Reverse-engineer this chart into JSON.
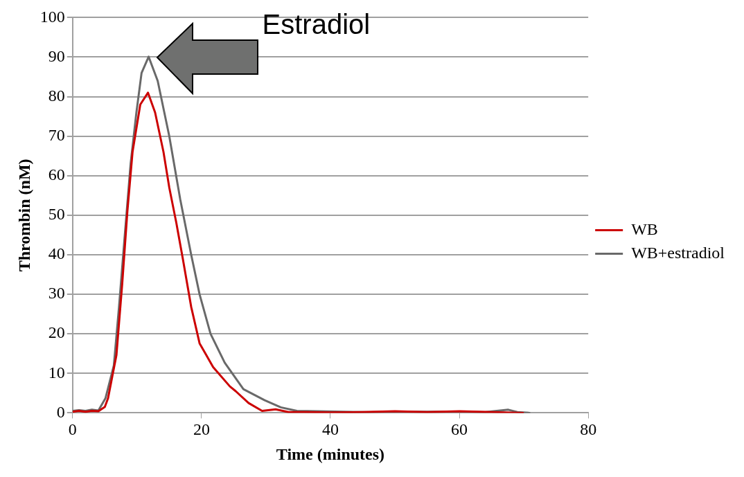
{
  "chart_data": {
    "type": "line",
    "xlabel": "Time (minutes)",
    "ylabel": "Thrombin (nM)",
    "xlim": [
      0,
      80
    ],
    "xticks": [
      0,
      20,
      40,
      60,
      80
    ],
    "ylim": [
      0,
      100
    ],
    "yticks": [
      0,
      10,
      20,
      30,
      40,
      50,
      60,
      70,
      80,
      90,
      100
    ],
    "grid": "y",
    "legend": "right",
    "annotations": [
      "Estradiol"
    ],
    "series": [
      {
        "name": "WB",
        "color": "#cc0000",
        "x": [
          0,
          1,
          2,
          3,
          4,
          5,
          5.5,
          6.8,
          7.7,
          8.5,
          9.3,
          10.5,
          11.7,
          12.8,
          14.1,
          15,
          16.1,
          17.1,
          18.4,
          19.7,
          21.8,
          24.4,
          25.3,
          27.3,
          29.4,
          31.5,
          33.5,
          36,
          40,
          45,
          50,
          55,
          60,
          65,
          70
        ],
        "values": [
          0.3,
          0.5,
          0.3,
          0.5,
          0.4,
          1.5,
          3.7,
          14.6,
          32.7,
          51,
          66,
          78,
          81,
          76,
          66,
          57,
          48,
          39,
          26.8,
          17.6,
          11.6,
          6.7,
          5.5,
          2.5,
          0.5,
          0.9,
          0.2,
          0.2,
          0.1,
          0.2,
          0.4,
          0.2,
          0.4,
          0.2,
          0
        ]
      },
      {
        "name": "WB+estradiol",
        "color": "#696969",
        "x": [
          0,
          1,
          2,
          3,
          4,
          5.1,
          6.4,
          7.2,
          8.1,
          9,
          9.9,
          10.7,
          11.8,
          13.2,
          15,
          16.7,
          18.4,
          19.7,
          21.4,
          23.6,
          26.5,
          29.8,
          32.3,
          34.8,
          38,
          42,
          46,
          50,
          55,
          60,
          64,
          67.6,
          69,
          71
        ],
        "values": [
          0.5,
          0.7,
          0.5,
          0.8,
          0.6,
          3.7,
          12,
          26.8,
          45,
          63,
          76,
          86,
          90.1,
          84,
          70,
          54,
          40,
          30,
          20,
          12.7,
          6,
          3.2,
          1.4,
          0.5,
          0.4,
          0.3,
          0.2,
          0.3,
          0.3,
          0.3,
          0.2,
          0.8,
          0.2,
          0
        ]
      }
    ]
  }
}
